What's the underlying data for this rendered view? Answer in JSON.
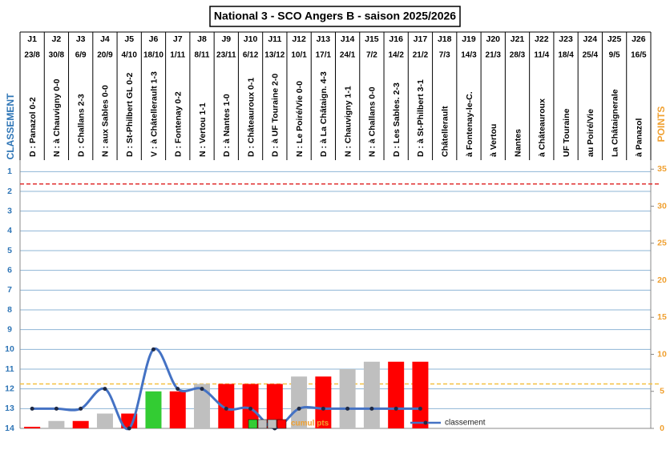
{
  "chart_data": {
    "type": "bar",
    "title": "National 3 - SCO Angers B - saison 2025/2026",
    "y_label": "CLASSEMENT",
    "y2_label": "POINTS",
    "categories": [
      "J1",
      "J2",
      "J3",
      "J4",
      "J5",
      "J6",
      "J7",
      "J8",
      "J9",
      "J10",
      "J11",
      "J12",
      "J13",
      "J14",
      "J15",
      "J16",
      "J17",
      "J18",
      "J19",
      "J20",
      "J21",
      "J22",
      "J23",
      "J24",
      "J25",
      "J26"
    ],
    "dates": [
      "23/8",
      "30/8",
      "6/9",
      "20/9",
      "4/10",
      "18/10",
      "1/11",
      "8/11",
      "23/11",
      "6/12",
      "13/12",
      "10/1",
      "17/1",
      "24/1",
      "7/2",
      "14/2",
      "21/2",
      "7/3",
      "14/3",
      "21/3",
      "28/3",
      "11/4",
      "18/4",
      "25/4",
      "9/5",
      "16/5"
    ],
    "matches": [
      "D : Panazol 0-2",
      "N : à Chauvigny 0-0",
      "D : Challans 2-3",
      "N : aux Sables 0-0",
      "D : St-Philbert GL 0-2",
      "V : à Châtellerault 1-3",
      "D : Fontenay 0-2",
      "N : Vertou 1-1",
      "D : à Nantes 1-0",
      "D : Châteauroux 0-1",
      "D : à UF Touraine 2-0",
      "N : Le Poiré/Vie 0-0",
      "D : à La Châtaign. 4-3",
      "N : Chauvigny 1-1",
      "N : à Challans 0-0",
      "D : Les Sables. 2-3",
      "D : à St-Philbert 3-1",
      "Châtellerault",
      "à Fontenay-le-C.",
      "à Vertou",
      "Nantes",
      "à Châteauroux",
      "UF Touraine",
      "au Poiré/Vie",
      "La Châtaignerale",
      "à Panazol"
    ],
    "series": [
      {
        "name": "cumul pts",
        "axis": "y2",
        "type": "bar",
        "colors": [
          "#ff0000",
          "#bfbfbf",
          "#ff0000",
          "#bfbfbf",
          "#ff0000",
          "#33cc33",
          "#ff0000",
          "#bfbfbf",
          "#ff0000",
          "#ff0000",
          "#ff0000",
          "#bfbfbf",
          "#ff0000",
          "#bfbfbf",
          "#bfbfbf",
          "#ff0000",
          "#ff0000",
          null,
          null,
          null,
          null,
          null,
          null,
          null,
          null,
          null
        ],
        "values": [
          0,
          1,
          1,
          2,
          2,
          5,
          5,
          6,
          6,
          6,
          6,
          7,
          7,
          8,
          9,
          9,
          9,
          null,
          null,
          null,
          null,
          null,
          null,
          null,
          null,
          null
        ]
      },
      {
        "name": "classement",
        "type": "line",
        "color": "#4472c4",
        "values": [
          13,
          13,
          13,
          12,
          14,
          10,
          12,
          12,
          13,
          13,
          14,
          13,
          13,
          13,
          13,
          13,
          13,
          null,
          null,
          null,
          null,
          null,
          null,
          null,
          null,
          null
        ]
      }
    ],
    "ylim": [
      14,
      0.5
    ],
    "yticks": [
      1,
      2,
      3,
      4,
      5,
      6,
      7,
      8,
      9,
      10,
      11,
      12,
      13,
      14
    ],
    "y2lim": [
      0,
      36
    ],
    "y2ticks": [
      0,
      5,
      10,
      15,
      20,
      25,
      30,
      35
    ],
    "reference_lines": [
      {
        "axis": "y2",
        "value": 33,
        "color": "#e03030"
      },
      {
        "axis": "y2",
        "value": 6,
        "color": "#f5c040"
      }
    ],
    "grid": true
  }
}
